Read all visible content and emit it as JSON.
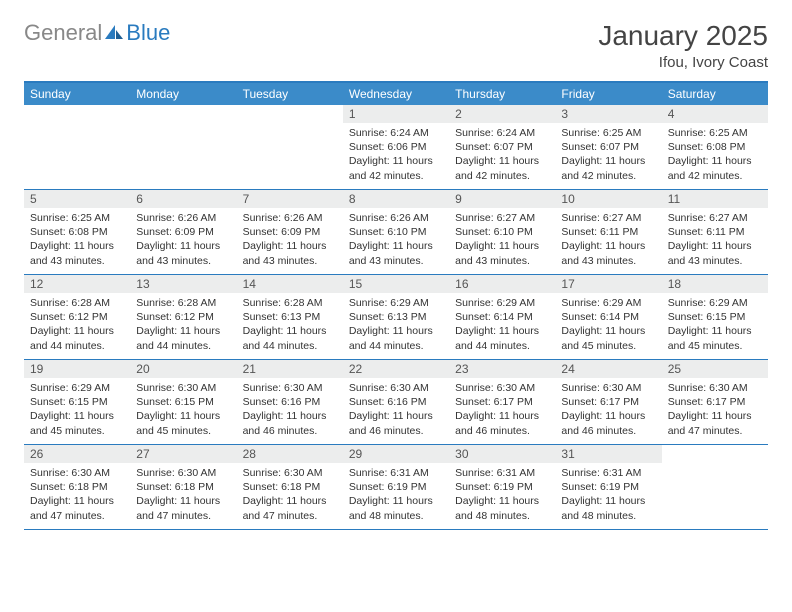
{
  "logo": {
    "general": "General",
    "blue": "Blue"
  },
  "title": "January 2025",
  "subtitle": "Ifou, Ivory Coast",
  "colors": {
    "header_bg": "#3b8bc9",
    "header_border": "#2a7bbf",
    "daynum_bg": "#eceded",
    "text": "#333333",
    "logo_gray": "#888888",
    "logo_blue": "#2a7bbf"
  },
  "daynames": [
    "Sunday",
    "Monday",
    "Tuesday",
    "Wednesday",
    "Thursday",
    "Friday",
    "Saturday"
  ],
  "weeks": [
    [
      {
        "n": "",
        "empty": true
      },
      {
        "n": "",
        "empty": true
      },
      {
        "n": "",
        "empty": true
      },
      {
        "n": "1",
        "sr": "6:24 AM",
        "ss": "6:06 PM",
        "dl": "11 hours and 42 minutes."
      },
      {
        "n": "2",
        "sr": "6:24 AM",
        "ss": "6:07 PM",
        "dl": "11 hours and 42 minutes."
      },
      {
        "n": "3",
        "sr": "6:25 AM",
        "ss": "6:07 PM",
        "dl": "11 hours and 42 minutes."
      },
      {
        "n": "4",
        "sr": "6:25 AM",
        "ss": "6:08 PM",
        "dl": "11 hours and 42 minutes."
      }
    ],
    [
      {
        "n": "5",
        "sr": "6:25 AM",
        "ss": "6:08 PM",
        "dl": "11 hours and 43 minutes."
      },
      {
        "n": "6",
        "sr": "6:26 AM",
        "ss": "6:09 PM",
        "dl": "11 hours and 43 minutes."
      },
      {
        "n": "7",
        "sr": "6:26 AM",
        "ss": "6:09 PM",
        "dl": "11 hours and 43 minutes."
      },
      {
        "n": "8",
        "sr": "6:26 AM",
        "ss": "6:10 PM",
        "dl": "11 hours and 43 minutes."
      },
      {
        "n": "9",
        "sr": "6:27 AM",
        "ss": "6:10 PM",
        "dl": "11 hours and 43 minutes."
      },
      {
        "n": "10",
        "sr": "6:27 AM",
        "ss": "6:11 PM",
        "dl": "11 hours and 43 minutes."
      },
      {
        "n": "11",
        "sr": "6:27 AM",
        "ss": "6:11 PM",
        "dl": "11 hours and 43 minutes."
      }
    ],
    [
      {
        "n": "12",
        "sr": "6:28 AM",
        "ss": "6:12 PM",
        "dl": "11 hours and 44 minutes."
      },
      {
        "n": "13",
        "sr": "6:28 AM",
        "ss": "6:12 PM",
        "dl": "11 hours and 44 minutes."
      },
      {
        "n": "14",
        "sr": "6:28 AM",
        "ss": "6:13 PM",
        "dl": "11 hours and 44 minutes."
      },
      {
        "n": "15",
        "sr": "6:29 AM",
        "ss": "6:13 PM",
        "dl": "11 hours and 44 minutes."
      },
      {
        "n": "16",
        "sr": "6:29 AM",
        "ss": "6:14 PM",
        "dl": "11 hours and 44 minutes."
      },
      {
        "n": "17",
        "sr": "6:29 AM",
        "ss": "6:14 PM",
        "dl": "11 hours and 45 minutes."
      },
      {
        "n": "18",
        "sr": "6:29 AM",
        "ss": "6:15 PM",
        "dl": "11 hours and 45 minutes."
      }
    ],
    [
      {
        "n": "19",
        "sr": "6:29 AM",
        "ss": "6:15 PM",
        "dl": "11 hours and 45 minutes."
      },
      {
        "n": "20",
        "sr": "6:30 AM",
        "ss": "6:15 PM",
        "dl": "11 hours and 45 minutes."
      },
      {
        "n": "21",
        "sr": "6:30 AM",
        "ss": "6:16 PM",
        "dl": "11 hours and 46 minutes."
      },
      {
        "n": "22",
        "sr": "6:30 AM",
        "ss": "6:16 PM",
        "dl": "11 hours and 46 minutes."
      },
      {
        "n": "23",
        "sr": "6:30 AM",
        "ss": "6:17 PM",
        "dl": "11 hours and 46 minutes."
      },
      {
        "n": "24",
        "sr": "6:30 AM",
        "ss": "6:17 PM",
        "dl": "11 hours and 46 minutes."
      },
      {
        "n": "25",
        "sr": "6:30 AM",
        "ss": "6:17 PM",
        "dl": "11 hours and 47 minutes."
      }
    ],
    [
      {
        "n": "26",
        "sr": "6:30 AM",
        "ss": "6:18 PM",
        "dl": "11 hours and 47 minutes."
      },
      {
        "n": "27",
        "sr": "6:30 AM",
        "ss": "6:18 PM",
        "dl": "11 hours and 47 minutes."
      },
      {
        "n": "28",
        "sr": "6:30 AM",
        "ss": "6:18 PM",
        "dl": "11 hours and 47 minutes."
      },
      {
        "n": "29",
        "sr": "6:31 AM",
        "ss": "6:19 PM",
        "dl": "11 hours and 48 minutes."
      },
      {
        "n": "30",
        "sr": "6:31 AM",
        "ss": "6:19 PM",
        "dl": "11 hours and 48 minutes."
      },
      {
        "n": "31",
        "sr": "6:31 AM",
        "ss": "6:19 PM",
        "dl": "11 hours and 48 minutes."
      },
      {
        "n": "",
        "empty": true
      }
    ]
  ],
  "labels": {
    "sunrise": "Sunrise:",
    "sunset": "Sunset:",
    "daylight": "Daylight:"
  }
}
